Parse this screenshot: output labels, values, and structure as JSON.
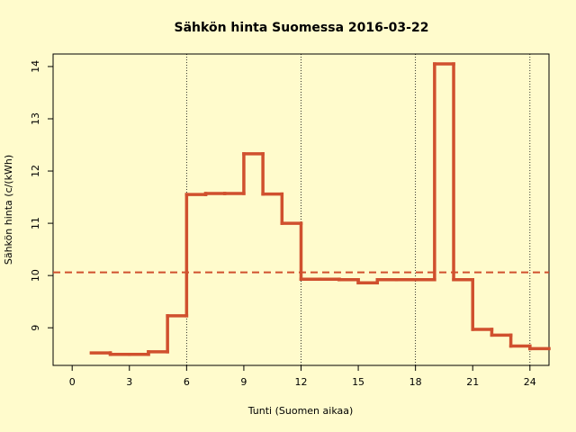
{
  "chart_data": {
    "type": "step",
    "title": "Sähkön hinta Suomessa 2016-03-22",
    "x_label": "Tunti (Suomen aikaa)",
    "y_label": "Sähkön hinta (c/(kWh)",
    "x": [
      1,
      2,
      3,
      4,
      5,
      6,
      7,
      8,
      9,
      10,
      11,
      12,
      13,
      14,
      15,
      16,
      17,
      18,
      19,
      20,
      21,
      22,
      23,
      24
    ],
    "values": [
      8.52,
      8.49,
      8.49,
      8.54,
      9.23,
      11.55,
      11.57,
      11.57,
      12.33,
      11.56,
      11.0,
      9.93,
      9.93,
      9.92,
      9.86,
      9.92,
      9.92,
      9.92,
      14.05,
      9.92,
      8.97,
      8.86,
      8.65,
      8.6
    ],
    "color": "#d0502e",
    "xlim": [
      -1,
      25
    ],
    "ylim": [
      8.28,
      14.24
    ],
    "xticks": [
      0,
      3,
      6,
      9,
      12,
      15,
      18,
      21,
      24
    ],
    "yticks": [
      9,
      10,
      11,
      12,
      13,
      14
    ],
    "vlines": [
      6,
      12,
      18,
      24
    ],
    "mean_line": 10.06
  }
}
